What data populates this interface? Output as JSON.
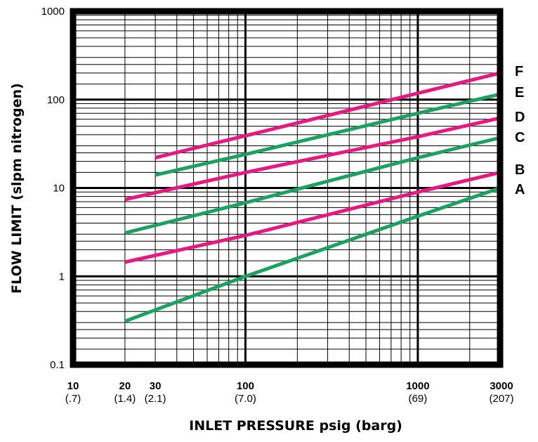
{
  "chart_data": {
    "type": "line",
    "xlabel": "INLET PRESSURE psig (barg)",
    "ylabel": "FLOW LIMIT (slpm nitrogen)",
    "x_scale": "log",
    "y_scale": "log",
    "xlim": [
      10,
      3000
    ],
    "ylim": [
      0.1,
      1000
    ],
    "grid": true,
    "x_ticks": [
      {
        "value": 10,
        "label": "10",
        "sublabel": "(.7)"
      },
      {
        "value": 20,
        "label": "20",
        "sublabel": "(1.4)"
      },
      {
        "value": 30,
        "label": "30",
        "sublabel": "(2.1)"
      },
      {
        "value": 100,
        "label": "100",
        "sublabel": "(7.0)"
      },
      {
        "value": 1000,
        "label": "1000",
        "sublabel": "(69)"
      },
      {
        "value": 3000,
        "label": "3000",
        "sublabel": "(207)"
      }
    ],
    "y_ticks": [
      {
        "value": 0.1,
        "label": "0.1"
      },
      {
        "value": 1,
        "label": "1"
      },
      {
        "value": 10,
        "label": "10"
      },
      {
        "value": 100,
        "label": "100"
      },
      {
        "value": 1000,
        "label": "1000"
      }
    ],
    "series": [
      {
        "name": "A",
        "color": "#1ba160",
        "points": [
          [
            20,
            0.31
          ],
          [
            100,
            1.0
          ],
          [
            1000,
            4.8
          ],
          [
            3000,
            10
          ]
        ]
      },
      {
        "name": "B",
        "color": "#e5197f",
        "points": [
          [
            20,
            1.45
          ],
          [
            100,
            2.9
          ],
          [
            1000,
            9.0
          ],
          [
            3000,
            15
          ]
        ]
      },
      {
        "name": "C",
        "color": "#1ba160",
        "points": [
          [
            20,
            3.1
          ],
          [
            100,
            6.8
          ],
          [
            1000,
            22
          ],
          [
            3000,
            37
          ]
        ]
      },
      {
        "name": "D",
        "color": "#e5197f",
        "points": [
          [
            20,
            7.4
          ],
          [
            100,
            15
          ],
          [
            1000,
            38
          ],
          [
            3000,
            62
          ]
        ]
      },
      {
        "name": "E",
        "color": "#1ba160",
        "points": [
          [
            30,
            14
          ],
          [
            100,
            24
          ],
          [
            1000,
            70
          ],
          [
            3000,
            115
          ]
        ]
      },
      {
        "name": "F",
        "color": "#e5197f",
        "points": [
          [
            30,
            22
          ],
          [
            100,
            39
          ],
          [
            1000,
            118
          ],
          [
            3000,
            200
          ]
        ]
      }
    ]
  }
}
